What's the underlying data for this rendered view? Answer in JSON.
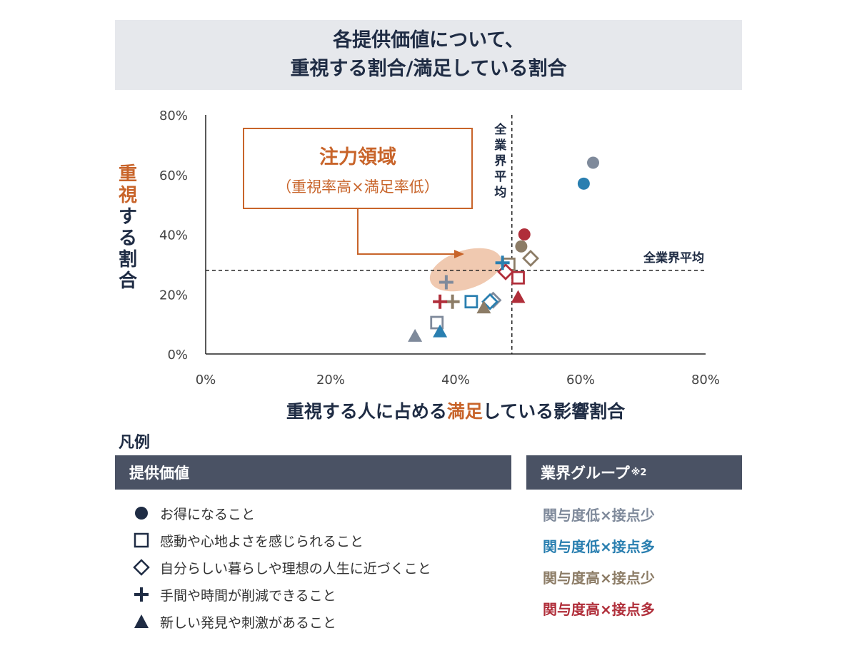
{
  "title": {
    "line1": "各提供価値について、",
    "line2": "重視する割合/満足している割合"
  },
  "chart_data": {
    "type": "scatter",
    "xlim": [
      0,
      80
    ],
    "ylim": [
      0,
      80
    ],
    "x_ticks": [
      "0%",
      "20%",
      "40%",
      "60%",
      "80%"
    ],
    "y_ticks": [
      "0%",
      "20%",
      "40%",
      "60%",
      "80%"
    ],
    "xlabel": {
      "pre": "重視する人に占める",
      "highlight": "満足",
      "post": "している影響割合"
    },
    "ylabel": {
      "highlight": "重視",
      "rest": "する割合"
    },
    "industry_average": {
      "x": 49,
      "y": 28,
      "label": "全業界平均"
    },
    "focus_area": {
      "title": "注力領域",
      "subtitle": "（重視率高×満足率低）"
    },
    "points": [
      {
        "value": "お得になること",
        "group": "関与度低×接点少",
        "x": 62,
        "y": 64
      },
      {
        "value": "お得になること",
        "group": "関与度低×接点多",
        "x": 60.5,
        "y": 57
      },
      {
        "value": "お得になること",
        "group": "関与度高×接点少",
        "x": 50.5,
        "y": 36
      },
      {
        "value": "お得になること",
        "group": "関与度高×接点多",
        "x": 51,
        "y": 40
      },
      {
        "value": "感動や心地よさを感じられること",
        "group": "関与度低×接点少",
        "x": 37,
        "y": 10.5
      },
      {
        "value": "感動や心地よさを感じられること",
        "group": "関与度低×接点多",
        "x": 42.5,
        "y": 17.5
      },
      {
        "value": "感動や心地よさを感じられること",
        "group": "関与度高×接点少",
        "x": 48.5,
        "y": 30
      },
      {
        "value": "感動や心地よさを感じられること",
        "group": "関与度高×接点多",
        "x": 50,
        "y": 25.5
      },
      {
        "value": "自分らしい暮らしや理想の人生に近づくこと",
        "group": "関与度低×接点少",
        "x": 46,
        "y": 18
      },
      {
        "value": "自分らしい暮らしや理想の人生に近づくこと",
        "group": "関与度低×接点多",
        "x": 45.5,
        "y": 17.5
      },
      {
        "value": "自分らしい暮らしや理想の人生に近づくこと",
        "group": "関与度高×接点少",
        "x": 52,
        "y": 32
      },
      {
        "value": "自分らしい暮らしや理想の人生に近づくこと",
        "group": "関与度高×接点多",
        "x": 48,
        "y": 27.5
      },
      {
        "value": "手間や時間が削減できること",
        "group": "関与度低×接点少",
        "x": 38.5,
        "y": 24
      },
      {
        "value": "手間や時間が削減できること",
        "group": "関与度低×接点多",
        "x": 47.5,
        "y": 30.5
      },
      {
        "value": "手間や時間が削減できること",
        "group": "関与度高×接点少",
        "x": 39.5,
        "y": 17.5
      },
      {
        "value": "手間や時間が削減できること",
        "group": "関与度高×接点多",
        "x": 37.5,
        "y": 17.5
      },
      {
        "value": "新しい発見や刺激があること",
        "group": "関与度低×接点少",
        "x": 33.5,
        "y": 6
      },
      {
        "value": "新しい発見や刺激があること",
        "group": "関与度低×接点多",
        "x": 37.5,
        "y": 7.5
      },
      {
        "value": "新しい発見や刺激があること",
        "group": "関与度高×接点少",
        "x": 44.5,
        "y": 15.5
      },
      {
        "value": "新しい発見や刺激があること",
        "group": "関与度高×接点多",
        "x": 50,
        "y": 19
      }
    ]
  },
  "legend": {
    "title": "凡例",
    "values_header": "提供価値",
    "values": [
      {
        "label": "お得になること",
        "marker": "circle"
      },
      {
        "label": "感動や心地よさを感じられること",
        "marker": "square"
      },
      {
        "label": "自分らしい暮らしや理想の人生に近づくこと",
        "marker": "diamond"
      },
      {
        "label": "手間や時間が削減できること",
        "marker": "plus"
      },
      {
        "label": "新しい発見や刺激があること",
        "marker": "triangle"
      }
    ],
    "groups_header": "業界グループ",
    "groups_note": "※2",
    "groups": [
      {
        "label": "関与度低×接点少",
        "color": "#7f8a9b"
      },
      {
        "label": "関与度低×接点多",
        "color": "#2a7fb0"
      },
      {
        "label": "関与度高×接点少",
        "color": "#8c7c66"
      },
      {
        "label": "関与度高×接点多",
        "color": "#b02e3a"
      }
    ]
  },
  "colors": {
    "accent": "#c8642a",
    "text": "#1f2c44",
    "header_bg": "#4a5264",
    "focus_fill": "#f0c9b0"
  }
}
